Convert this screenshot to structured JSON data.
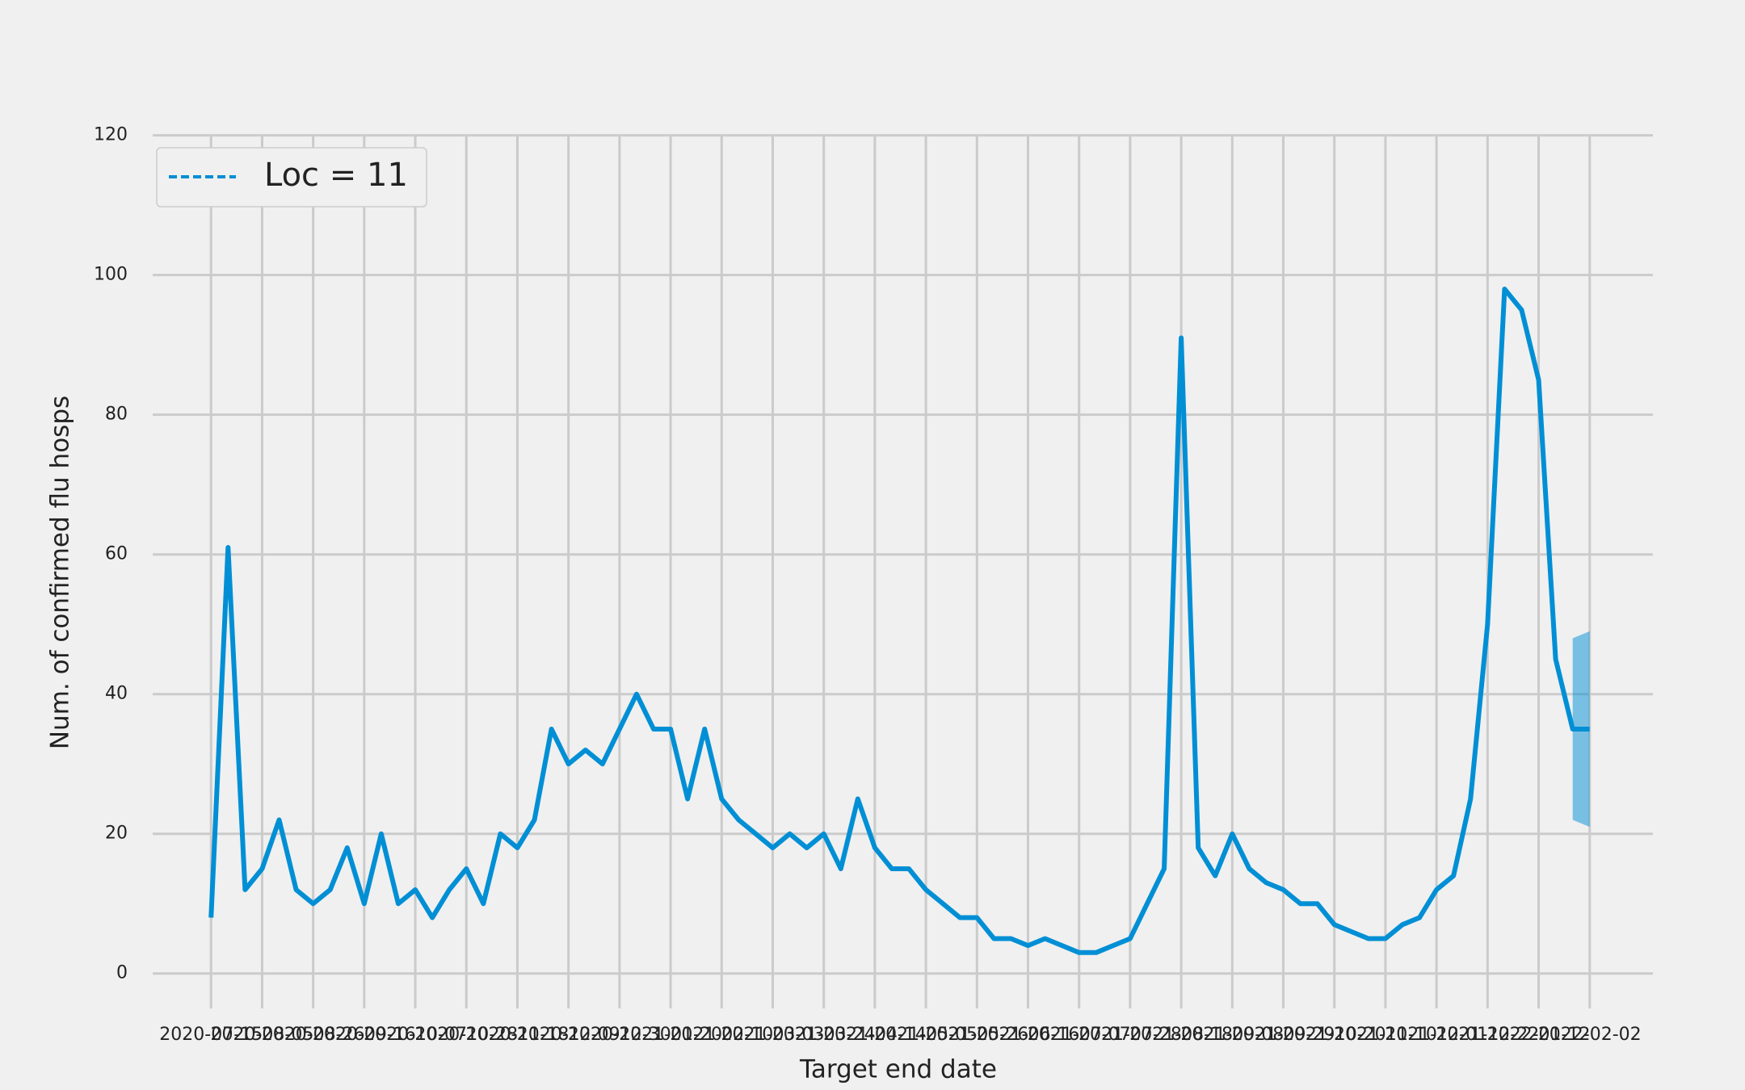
{
  "chart_data": {
    "type": "line",
    "x_label": "Target end date",
    "y_label": "Num. of confirmed flu hosps",
    "legend": "upper left",
    "grid": true,
    "x": [
      "2020-07-15",
      "2020-07-22",
      "2020-07-29",
      "2020-08-05",
      "2020-08-12",
      "2020-08-19",
      "2020-08-26",
      "2020-09-02",
      "2020-09-09",
      "2020-09-16",
      "2020-09-23",
      "2020-09-30",
      "2020-10-07",
      "2020-10-14",
      "2020-10-21",
      "2020-10-28",
      "2020-11-04",
      "2020-11-11",
      "2020-11-18",
      "2020-11-25",
      "2020-12-02",
      "2020-12-09",
      "2020-12-16",
      "2020-12-23",
      "2020-12-30",
      "2021-01-06",
      "2021-01-13",
      "2021-01-20",
      "2021-01-27",
      "2021-02-03",
      "2021-02-10",
      "2021-02-17",
      "2021-02-24",
      "2021-03-03",
      "2021-03-10",
      "2021-03-17",
      "2021-03-24",
      "2021-03-31",
      "2021-04-07",
      "2021-04-14",
      "2021-04-21",
      "2021-04-28",
      "2021-05-05",
      "2021-05-12",
      "2021-05-19",
      "2021-05-26",
      "2021-06-02",
      "2021-06-09",
      "2021-06-16",
      "2021-06-23",
      "2021-06-30",
      "2021-07-07",
      "2021-07-14",
      "2021-07-21",
      "2021-07-28",
      "2021-08-04",
      "2021-08-11",
      "2021-08-18",
      "2021-08-25",
      "2021-09-01",
      "2021-09-08",
      "2021-09-15",
      "2021-09-22",
      "2021-09-29",
      "2021-10-06",
      "2021-10-13",
      "2021-10-20",
      "2021-10-27",
      "2021-11-03",
      "2021-11-10",
      "2021-11-17",
      "2021-11-24",
      "2021-12-01",
      "2021-12-08",
      "2021-12-15",
      "2021-12-22",
      "2021-12-29",
      "2022-01-05",
      "2022-01-12",
      "2022-01-19",
      "2022-01-26",
      "2022-02-02"
    ],
    "series": [
      {
        "name": "Loc = 11",
        "color": "#008fd5",
        "values": [
          8,
          61,
          12,
          15,
          22,
          12,
          10,
          12,
          18,
          10,
          20,
          10,
          12,
          8,
          12,
          15,
          10,
          20,
          18,
          22,
          35,
          30,
          32,
          30,
          35,
          40,
          35,
          35,
          25,
          35,
          25,
          22,
          20,
          18,
          20,
          18,
          20,
          15,
          25,
          18,
          15,
          15,
          12,
          10,
          8,
          8,
          5,
          5,
          4,
          5,
          4,
          3,
          3,
          4,
          5,
          10,
          15,
          91,
          18,
          14,
          20,
          15,
          13,
          12,
          10,
          10,
          7,
          6,
          5,
          5,
          7,
          8,
          12,
          14,
          25,
          50,
          98,
          95,
          85,
          45,
          35,
          35
        ]
      }
    ],
    "interval": {
      "x": [
        "2022-01-26",
        "2022-02-02"
      ],
      "lower": [
        22,
        21
      ],
      "upper": [
        48,
        49
      ],
      "color": "#008fd5"
    },
    "xlim": [
      "2020-06-21",
      "2022-02-28"
    ],
    "xticks": [
      "2020-07-15",
      "2020-08-05",
      "2020-08-26",
      "2020-09-16",
      "2020-10-07",
      "2020-10-28",
      "2020-11-18",
      "2020-12-09",
      "2020-12-30",
      "2021-01-20",
      "2021-02-10",
      "2021-03-03",
      "2021-03-24",
      "2021-04-14",
      "2021-05-05",
      "2021-05-26",
      "2021-06-16",
      "2021-07-07",
      "2021-07-28",
      "2021-08-18",
      "2021-09-08",
      "2021-09-29",
      "2021-10-20",
      "2021-11-10",
      "2021-12-01",
      "2021-12-22",
      "2022-01-12",
      "2022-02-02"
    ],
    "ylim": [
      -5,
      121
    ],
    "yticks": [
      0,
      20,
      40,
      60,
      80,
      100,
      120
    ]
  }
}
